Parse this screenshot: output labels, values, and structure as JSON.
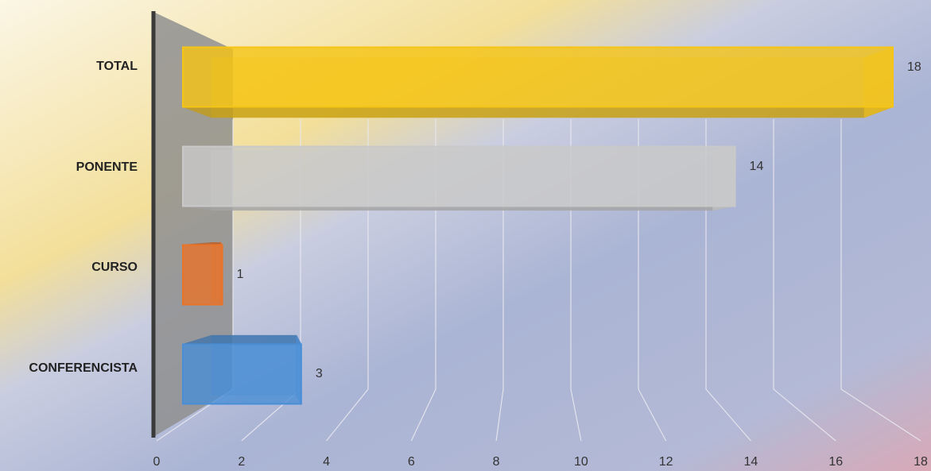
{
  "chart_data": {
    "type": "bar",
    "orientation": "horizontal",
    "categories": [
      "TOTAL",
      "PONENTE",
      "CURSO",
      "CONFERENCISTA"
    ],
    "values": [
      18,
      14,
      1,
      3
    ],
    "colors": [
      "#f5c414",
      "#c9c9c9",
      "#e8732a",
      "#4a8ed6"
    ],
    "xlim": [
      0,
      18
    ],
    "xticks": [
      0,
      2,
      4,
      6,
      8,
      10,
      12,
      14,
      16,
      18
    ],
    "grid": true
  }
}
